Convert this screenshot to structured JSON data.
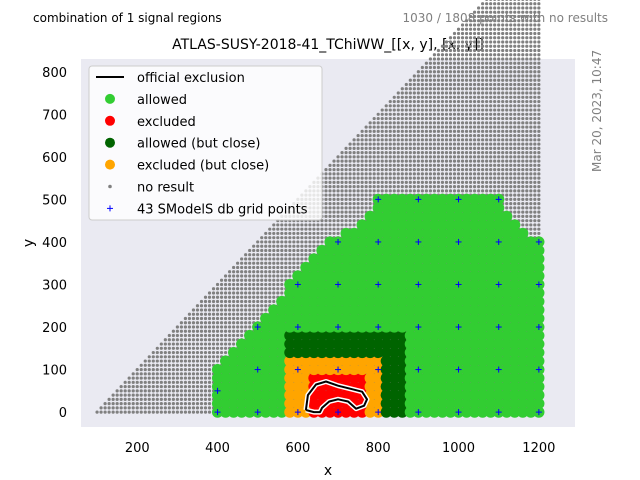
{
  "header": {
    "left_text": "combination of 1 signal regions",
    "right_text": "1030 / 1808 points with no results",
    "side_stamp": "Mar 20, 2023, 10:47"
  },
  "chart_data": {
    "type": "scatter",
    "title": "ATLAS-SUSY-2018-41_TChiWW_[[x, y], [x, y]]",
    "xlabel": "x",
    "ylabel": "y",
    "xlim": [
      60,
      1290
    ],
    "ylim": [
      -35,
      830
    ],
    "xticks": [
      200,
      400,
      600,
      800,
      1000,
      1200
    ],
    "yticks": [
      0,
      100,
      200,
      300,
      400,
      500,
      600,
      700,
      800
    ],
    "grid": false,
    "background": "#eaeaf2",
    "legend_position": "top-left",
    "legend": [
      {
        "label": "official exclusion",
        "kind": "line",
        "color": "#000000"
      },
      {
        "label": "allowed",
        "kind": "dot",
        "color": "#32cd32"
      },
      {
        "label": "excluded",
        "kind": "dot",
        "color": "#ff0000"
      },
      {
        "label": "allowed (but close)",
        "kind": "dot",
        "color": "#006400"
      },
      {
        "label": "excluded (but close)",
        "kind": "dot",
        "color": "#ffa500"
      },
      {
        "label": "no result",
        "kind": "small",
        "color": "#808080"
      },
      {
        "label": "43 SModelS db grid points",
        "kind": "plus",
        "color": "#0000ff"
      }
    ],
    "regions": {
      "no_result": {
        "x_range": [
          100,
          1200
        ],
        "y_max_rule": "y <= x - 100",
        "color": "#808080"
      },
      "allowed_rows": [
        {
          "y": 0,
          "x_min": 400,
          "x_max": 1200
        },
        {
          "y": 100,
          "x_min": 400,
          "x_max": 1200
        },
        {
          "y": 200,
          "x_min": 500,
          "x_max": 1200
        },
        {
          "y": 300,
          "x_min": 580,
          "x_max": 1200
        },
        {
          "y": 400,
          "x_min": 680,
          "x_max": 1200
        },
        {
          "y": 450,
          "x_min": 760,
          "x_max": 1140
        },
        {
          "y": 500,
          "x_min": 800,
          "x_max": 1100
        }
      ],
      "allowed_close": {
        "x_range": [
          580,
          860
        ],
        "y_range": [
          0,
          190
        ]
      },
      "excluded_close": {
        "x_range": [
          580,
          800
        ],
        "y_range": [
          0,
          130
        ]
      },
      "excluded": {
        "x_range": [
          630,
          760
        ],
        "y_range": [
          0,
          80
        ]
      }
    },
    "official_exclusion_contour": [
      [
        620,
        5
      ],
      [
        625,
        40
      ],
      [
        645,
        65
      ],
      [
        670,
        72
      ],
      [
        700,
        62
      ],
      [
        730,
        55
      ],
      [
        760,
        48
      ],
      [
        772,
        30
      ],
      [
        765,
        15
      ],
      [
        745,
        8
      ],
      [
        725,
        25
      ],
      [
        700,
        30
      ],
      [
        678,
        25
      ],
      [
        660,
        10
      ],
      [
        655,
        0
      ],
      [
        640,
        0
      ],
      [
        620,
        5
      ]
    ],
    "grid_points": [
      [
        400,
        0
      ],
      [
        500,
        0
      ],
      [
        600,
        0
      ],
      [
        700,
        0
      ],
      [
        800,
        0
      ],
      [
        900,
        0
      ],
      [
        1000,
        0
      ],
      [
        1100,
        0
      ],
      [
        1200,
        0
      ],
      [
        400,
        50
      ],
      [
        500,
        100
      ],
      [
        600,
        100
      ],
      [
        700,
        100
      ],
      [
        800,
        100
      ],
      [
        900,
        100
      ],
      [
        1000,
        100
      ],
      [
        1100,
        100
      ],
      [
        1200,
        100
      ],
      [
        500,
        200
      ],
      [
        600,
        200
      ],
      [
        700,
        200
      ],
      [
        800,
        200
      ],
      [
        900,
        200
      ],
      [
        1000,
        200
      ],
      [
        1100,
        200
      ],
      [
        1200,
        200
      ],
      [
        600,
        300
      ],
      [
        700,
        300
      ],
      [
        800,
        300
      ],
      [
        900,
        300
      ],
      [
        1000,
        300
      ],
      [
        1100,
        300
      ],
      [
        1200,
        300
      ],
      [
        700,
        400
      ],
      [
        800,
        400
      ],
      [
        900,
        400
      ],
      [
        1000,
        400
      ],
      [
        1100,
        400
      ],
      [
        1200,
        400
      ],
      [
        800,
        500
      ],
      [
        900,
        500
      ],
      [
        1000,
        500
      ],
      [
        1100,
        500
      ]
    ]
  }
}
